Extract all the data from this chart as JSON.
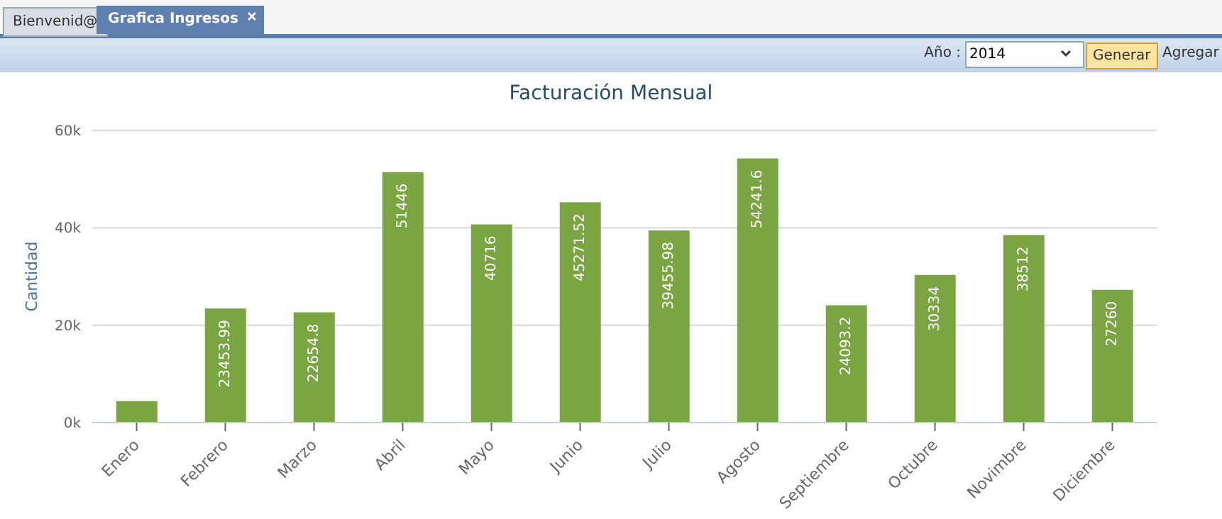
{
  "chart_data": {
    "type": "bar",
    "title": "Facturación Mensual",
    "ylabel": "Cantidad",
    "categories": [
      "Enero",
      "Febrero",
      "Marzo",
      "Abril",
      "Mayo",
      "Junio",
      "Julio",
      "Agosto",
      "Septiembre",
      "Octubre",
      "Novimbre",
      "Diciembre"
    ],
    "values": [
      4400,
      23453.99,
      22654.8,
      51446,
      40716,
      45271.52,
      39455.98,
      54241.6,
      24093.2,
      30334,
      38512,
      27260
    ],
    "value_labels": [
      null,
      "23453.99",
      "22654.8",
      "51446",
      "40716",
      "45271.52",
      "39455.98",
      "54241.6",
      "24093.2",
      "30334",
      "38512",
      "27260"
    ],
    "color": "#7aa542",
    "ylim": [
      0,
      60000
    ],
    "yticks": [
      {
        "value": 0,
        "label": "0k"
      },
      {
        "value": 20000,
        "label": "20k"
      },
      {
        "value": 40000,
        "label": "40k"
      },
      {
        "value": 60000,
        "label": "60k"
      }
    ],
    "grid": "y",
    "annotations": [
      "Bienvenid@",
      "Grafica Ingresos",
      "Año :",
      "2014",
      "Generar",
      "Agregar"
    ]
  }
}
